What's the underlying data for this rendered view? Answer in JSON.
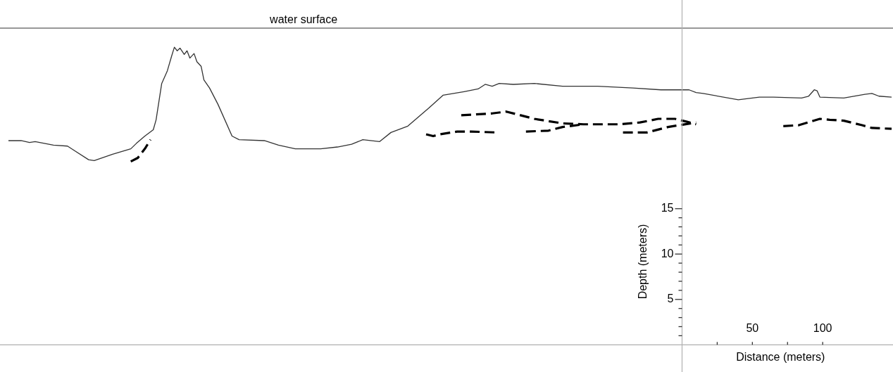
{
  "chart_data": {
    "type": "line",
    "xlabel": "Distance (meters)",
    "ylabel": "Depth (meters)",
    "xticks": [
      {
        "value": 25,
        "label": null
      },
      50,
      {
        "value": 75,
        "label": null
      },
      100
    ],
    "yticks": [
      {
        "value": 1,
        "label": null
      },
      {
        "value": 2,
        "label": null
      },
      {
        "value": 3,
        "label": null
      },
      {
        "value": 4,
        "label": null
      },
      5,
      {
        "value": 6,
        "label": null
      },
      {
        "value": 7,
        "label": null
      },
      {
        "value": 8,
        "label": null
      },
      {
        "value": 9,
        "label": null
      },
      10,
      {
        "value": 11,
        "label": null
      },
      {
        "value": 12,
        "label": null
      },
      {
        "value": 13,
        "label": null
      },
      {
        "value": 14,
        "label": null
      },
      15
    ],
    "xlim": [
      -485,
      150
    ],
    "ylim": [
      -3,
      38
    ],
    "marker": "none",
    "legend": false,
    "ref_lines": [
      {
        "axis": "y",
        "value": 34.9,
        "label": "water surface",
        "color": "#333333"
      }
    ],
    "series": [
      {
        "color": "#333333",
        "line_style": "solid",
        "x": [
          -479,
          -470,
          -464,
          -460,
          -447,
          -437,
          -432,
          -422,
          -418,
          -405,
          -392,
          -388,
          -382,
          -376,
          -374,
          -370,
          -366,
          -363,
          -361,
          -359,
          -357,
          -354,
          -352,
          -350,
          -347,
          -345,
          -342,
          -340,
          -336,
          -330,
          -320,
          -315,
          -297,
          -287,
          -275,
          -257,
          -245,
          -235,
          -227,
          -215,
          -207,
          -195,
          -180,
          -170,
          -155,
          -145,
          -140,
          -135,
          -130,
          -120,
          -105,
          -85,
          -60,
          -35,
          -15,
          5,
          10,
          15,
          40,
          55,
          65,
          85,
          90,
          94,
          96,
          98,
          115,
          130,
          135,
          140,
          149
        ],
        "values": [
          22.5,
          22.5,
          22.3,
          22.4,
          22.0,
          21.9,
          21.4,
          20.4,
          20.3,
          21.0,
          21.6,
          22.2,
          23.0,
          23.7,
          24.8,
          28.8,
          30.2,
          31.8,
          32.8,
          32.4,
          32.7,
          32.0,
          32.4,
          31.6,
          32.1,
          31.2,
          30.7,
          29.2,
          28.3,
          26.5,
          23.0,
          22.6,
          22.5,
          22.0,
          21.6,
          21.6,
          21.8,
          22.1,
          22.6,
          22.4,
          23.4,
          24.1,
          26.1,
          27.5,
          27.9,
          28.2,
          28.7,
          28.5,
          28.8,
          28.7,
          28.8,
          28.5,
          28.5,
          28.3,
          28.1,
          28.1,
          27.8,
          27.7,
          27.0,
          27.3,
          27.3,
          27.2,
          27.4,
          28.1,
          28.0,
          27.3,
          27.2,
          27.6,
          27.7,
          27.4,
          27.3
        ]
      },
      {
        "color": "#000000",
        "line_style": "dashed",
        "x": [
          -157,
          -135,
          -125,
          -105,
          -85,
          -70,
          -45,
          -30,
          -17,
          -5,
          3,
          10,
          null,
          72,
          83,
          98,
          105,
          115,
          128,
          135,
          149
        ],
        "values": [
          25.3,
          25.5,
          25.7,
          24.9,
          24.4,
          24.3,
          24.3,
          24.5,
          24.9,
          24.9,
          24.6,
          24.3,
          null,
          24.1,
          24.2,
          24.9,
          24.8,
          24.7,
          24.2,
          23.9,
          23.8
        ]
      },
      {
        "color": "#000000",
        "line_style": "dashed",
        "x": [
          -392,
          -387,
          -382,
          -378,
          null,
          -182,
          -177,
          -172,
          -160,
          -150,
          -132,
          null,
          -111,
          -95,
          -85,
          -70,
          null,
          -42,
          -25,
          -10,
          10
        ],
        "values": [
          20.2,
          20.6,
          21.6,
          22.6,
          null,
          23.2,
          23.0,
          23.2,
          23.5,
          23.5,
          23.4,
          null,
          23.5,
          23.6,
          24.0,
          24.3,
          null,
          23.4,
          23.4,
          24.0,
          24.5
        ]
      }
    ]
  }
}
